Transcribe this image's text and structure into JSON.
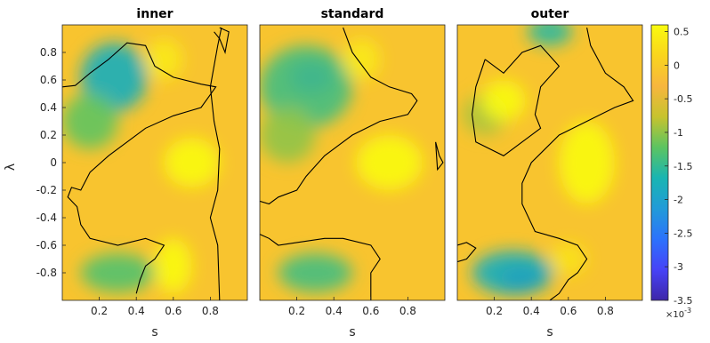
{
  "chart_data": {
    "type": "heatmap",
    "x_tick_labels": [
      "0.2",
      "0.4",
      "0.6",
      "0.8"
    ],
    "x_ticks": [
      0.2,
      0.4,
      0.6,
      0.8
    ],
    "y_tick_labels": [
      "0.8",
      "0.6",
      "0.4",
      "0.2",
      "0",
      "-0.2",
      "-0.4",
      "-0.6",
      "-0.8"
    ],
    "y_ticks": [
      0.8,
      0.6,
      0.4,
      0.2,
      0,
      -0.2,
      -0.4,
      -0.6,
      -0.8
    ],
    "xlim": [
      0,
      1
    ],
    "ylim": [
      -1,
      1
    ],
    "xlabel": "s",
    "ylabel": "λ",
    "colorbar": {
      "range": [
        -3.5,
        0.6
      ],
      "tick_labels": [
        "0.5",
        "0",
        "-0.5",
        "-1",
        "-1.5",
        "-2",
        "-2.5",
        "-3",
        "-3.5"
      ],
      "ticks": [
        0.5,
        0,
        -0.5,
        -1,
        -1.5,
        -2,
        -2.5,
        -3,
        -3.5
      ],
      "exponent_label": "×10",
      "exponent_power": "-3",
      "colormap": [
        "#3e26a8",
        "#4743f7",
        "#2c72fc",
        "#219bd8",
        "#19b5b2",
        "#5cc461",
        "#c7c32e",
        "#f7b63e",
        "#f9d51d",
        "#f9fb0e"
      ]
    },
    "panels": [
      {
        "title": "inner",
        "blobs": [
          {
            "x": 0.28,
            "y": 0.62,
            "v": -1.8,
            "sx": 0.18,
            "sy": 0.25
          },
          {
            "x": 0.15,
            "y": 0.3,
            "v": -1.2,
            "sx": 0.15,
            "sy": 0.2
          },
          {
            "x": 0.3,
            "y": -0.8,
            "v": -1.3,
            "sx": 0.2,
            "sy": 0.14
          },
          {
            "x": 0.7,
            "y": 0.0,
            "v": 0.6,
            "sx": 0.15,
            "sy": 0.18
          },
          {
            "x": 0.6,
            "y": -0.75,
            "v": 0.6,
            "sx": 0.1,
            "sy": 0.2
          },
          {
            "x": 0.55,
            "y": 0.75,
            "v": 0.4,
            "sx": 0.1,
            "sy": 0.15
          }
        ],
        "contours": [
          [
            [
              0.0,
              0.55
            ],
            [
              0.07,
              0.56
            ],
            [
              0.15,
              0.65
            ],
            [
              0.25,
              0.75
            ],
            [
              0.35,
              0.87
            ],
            [
              0.45,
              0.85
            ],
            [
              0.5,
              0.7
            ],
            [
              0.6,
              0.62
            ],
            [
              0.75,
              0.57
            ],
            [
              0.83,
              0.55
            ],
            [
              0.75,
              0.4
            ],
            [
              0.6,
              0.34
            ],
            [
              0.45,
              0.25
            ],
            [
              0.35,
              0.15
            ],
            [
              0.25,
              0.05
            ],
            [
              0.15,
              -0.07
            ],
            [
              0.1,
              -0.2
            ],
            [
              0.05,
              -0.18
            ],
            [
              0.03,
              -0.25
            ],
            [
              0.08,
              -0.32
            ],
            [
              0.1,
              -0.45
            ],
            [
              0.15,
              -0.55
            ],
            [
              0.3,
              -0.6
            ],
            [
              0.45,
              -0.55
            ],
            [
              0.55,
              -0.6
            ],
            [
              0.5,
              -0.7
            ],
            [
              0.45,
              -0.75
            ],
            [
              0.42,
              -0.85
            ],
            [
              0.4,
              -0.95
            ]
          ],
          [
            [
              0.86,
              0.98
            ],
            [
              0.84,
              0.85
            ],
            [
              0.8,
              0.55
            ],
            [
              0.82,
              0.3
            ],
            [
              0.85,
              0.1
            ],
            [
              0.84,
              -0.2
            ],
            [
              0.8,
              -0.4
            ],
            [
              0.84,
              -0.6
            ],
            [
              0.85,
              -1.0
            ]
          ],
          [
            [
              0.82,
              0.95
            ],
            [
              0.85,
              0.9
            ],
            [
              0.88,
              0.8
            ],
            [
              0.9,
              0.95
            ],
            [
              0.85,
              0.98
            ]
          ]
        ]
      },
      {
        "title": "standard",
        "blobs": [
          {
            "x": 0.28,
            "y": 0.62,
            "v": -2.6,
            "sx": 0.12,
            "sy": 0.12
          },
          {
            "x": 0.25,
            "y": 0.55,
            "v": -1.4,
            "sx": 0.25,
            "sy": 0.3
          },
          {
            "x": 0.15,
            "y": 0.2,
            "v": -1.0,
            "sx": 0.15,
            "sy": 0.2
          },
          {
            "x": 0.3,
            "y": -0.8,
            "v": -1.4,
            "sx": 0.2,
            "sy": 0.14
          },
          {
            "x": 0.7,
            "y": 0.0,
            "v": 0.6,
            "sx": 0.18,
            "sy": 0.2
          },
          {
            "x": 0.55,
            "y": 0.75,
            "v": 0.4,
            "sx": 0.1,
            "sy": 0.15
          }
        ],
        "contours": [
          [
            [
              0.45,
              0.98
            ],
            [
              0.5,
              0.8
            ],
            [
              0.6,
              0.62
            ],
            [
              0.7,
              0.55
            ],
            [
              0.82,
              0.5
            ],
            [
              0.85,
              0.45
            ],
            [
              0.8,
              0.35
            ],
            [
              0.65,
              0.3
            ],
            [
              0.5,
              0.2
            ],
            [
              0.35,
              0.05
            ],
            [
              0.25,
              -0.1
            ],
            [
              0.2,
              -0.2
            ],
            [
              0.1,
              -0.25
            ],
            [
              0.05,
              -0.3
            ],
            [
              0.0,
              -0.28
            ]
          ],
          [
            [
              0.0,
              -0.52
            ],
            [
              0.05,
              -0.55
            ],
            [
              0.1,
              -0.6
            ],
            [
              0.2,
              -0.58
            ],
            [
              0.35,
              -0.55
            ],
            [
              0.45,
              -0.55
            ],
            [
              0.6,
              -0.6
            ],
            [
              0.65,
              -0.7
            ],
            [
              0.6,
              -0.8
            ],
            [
              0.6,
              -1.0
            ]
          ],
          [
            [
              0.95,
              0.15
            ],
            [
              0.97,
              0.05
            ],
            [
              0.99,
              0.0
            ],
            [
              0.96,
              -0.05
            ],
            [
              0.95,
              0.15
            ]
          ]
        ]
      },
      {
        "title": "outer",
        "blobs": [
          {
            "x": 0.35,
            "y": -0.85,
            "v": -3.3,
            "sx": 0.12,
            "sy": 0.1
          },
          {
            "x": 0.3,
            "y": -0.8,
            "v": -1.8,
            "sx": 0.22,
            "sy": 0.16
          },
          {
            "x": 0.5,
            "y": 0.95,
            "v": -1.6,
            "sx": 0.12,
            "sy": 0.1
          },
          {
            "x": 0.15,
            "y": 0.35,
            "v": -0.9,
            "sx": 0.12,
            "sy": 0.15
          },
          {
            "x": 0.25,
            "y": 0.45,
            "v": 0.7,
            "sx": 0.12,
            "sy": 0.15
          },
          {
            "x": 0.7,
            "y": 0.0,
            "v": 0.6,
            "sx": 0.15,
            "sy": 0.3
          },
          {
            "x": 0.6,
            "y": -0.7,
            "v": 0.3,
            "sx": 0.1,
            "sy": 0.12
          }
        ],
        "contours": [
          [
            [
              0.15,
              0.75
            ],
            [
              0.25,
              0.65
            ],
            [
              0.35,
              0.8
            ],
            [
              0.45,
              0.85
            ],
            [
              0.55,
              0.7
            ],
            [
              0.45,
              0.55
            ],
            [
              0.42,
              0.35
            ],
            [
              0.45,
              0.25
            ],
            [
              0.35,
              0.15
            ],
            [
              0.25,
              0.05
            ],
            [
              0.1,
              0.15
            ],
            [
              0.08,
              0.35
            ],
            [
              0.1,
              0.55
            ],
            [
              0.15,
              0.75
            ]
          ],
          [
            [
              0.7,
              0.98
            ],
            [
              0.72,
              0.85
            ],
            [
              0.8,
              0.65
            ],
            [
              0.9,
              0.55
            ],
            [
              0.95,
              0.45
            ],
            [
              0.85,
              0.4
            ],
            [
              0.7,
              0.3
            ],
            [
              0.55,
              0.2
            ],
            [
              0.4,
              0.0
            ],
            [
              0.35,
              -0.15
            ],
            [
              0.35,
              -0.3
            ],
            [
              0.42,
              -0.5
            ],
            [
              0.55,
              -0.55
            ],
            [
              0.65,
              -0.6
            ],
            [
              0.7,
              -0.7
            ],
            [
              0.65,
              -0.8
            ],
            [
              0.6,
              -0.85
            ],
            [
              0.55,
              -0.95
            ],
            [
              0.5,
              -1.0
            ]
          ],
          [
            [
              0.0,
              -0.6
            ],
            [
              0.05,
              -0.58
            ],
            [
              0.1,
              -0.62
            ],
            [
              0.05,
              -0.7
            ],
            [
              0.0,
              -0.72
            ]
          ]
        ]
      }
    ]
  }
}
